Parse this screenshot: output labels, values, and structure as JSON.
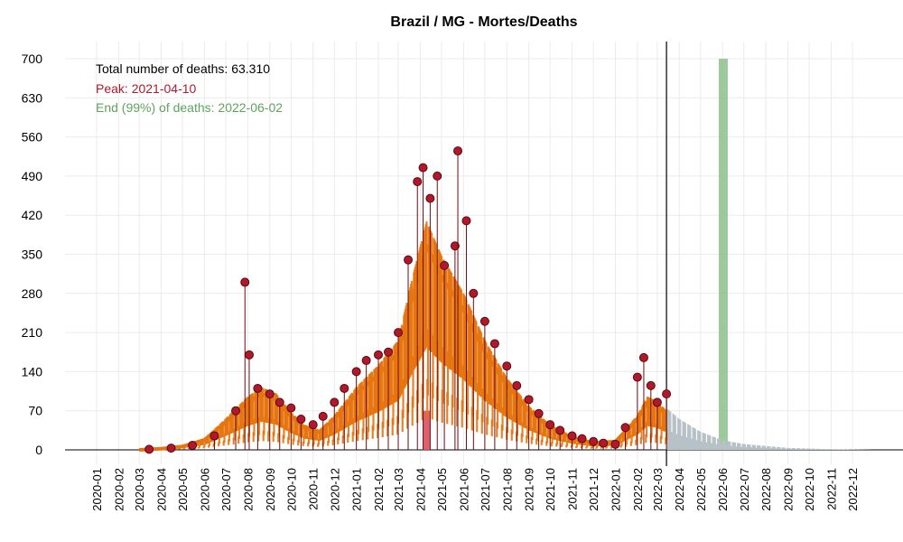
{
  "chart_data": {
    "type": "scatter",
    "title": "Brazil / MG - Mortes/Deaths",
    "xlabel": "",
    "ylabel": "",
    "ylim": [
      0,
      700
    ],
    "y_ticks": [
      0,
      70,
      140,
      210,
      280,
      350,
      420,
      490,
      560,
      630,
      700
    ],
    "x_ticks": [
      "2020-01",
      "2020-02",
      "2020-03",
      "2020-04",
      "2020-05",
      "2020-06",
      "2020-07",
      "2020-08",
      "2020-09",
      "2020-10",
      "2020-11",
      "2020-12",
      "2021-01",
      "2021-02",
      "2021-03",
      "2021-04",
      "2021-05",
      "2021-06",
      "2021-07",
      "2021-08",
      "2021-09",
      "2021-10",
      "2021-11",
      "2021-12",
      "2022-01",
      "2022-02",
      "2022-03",
      "2022-04",
      "2022-05",
      "2022-06",
      "2022-07",
      "2022-08",
      "2022-09",
      "2022-10",
      "2022-11",
      "2022-12"
    ],
    "grid": true,
    "annotations": {
      "total": "Total number of deaths: 63.310",
      "peak": "Peak: 2021-04-10",
      "end": "End (99%) of deaths: 2022-06-02"
    },
    "markers": {
      "current_date": "2022-03-14",
      "peak_date": "2021-04-10",
      "end_date": "2022-06-02"
    },
    "colors": {
      "points": "#b2182b",
      "smooth": "#e6750f",
      "peak": "#d9505c",
      "end": "#8dc08d",
      "forecast": "#b7c2c7",
      "annotation_total": "#000000",
      "annotation_peak": "#b2182b",
      "annotation_end": "#5fa35f"
    },
    "daily_deaths": [
      {
        "x": "2020-03-15",
        "y": 1
      },
      {
        "x": "2020-04-15",
        "y": 3
      },
      {
        "x": "2020-05-15",
        "y": 8
      },
      {
        "x": "2020-06-15",
        "y": 25
      },
      {
        "x": "2020-07-15",
        "y": 70
      },
      {
        "x": "2020-07-28",
        "y": 300
      },
      {
        "x": "2020-08-03",
        "y": 170
      },
      {
        "x": "2020-08-15",
        "y": 110
      },
      {
        "x": "2020-09-01",
        "y": 100
      },
      {
        "x": "2020-09-15",
        "y": 85
      },
      {
        "x": "2020-10-01",
        "y": 75
      },
      {
        "x": "2020-10-15",
        "y": 55
      },
      {
        "x": "2020-11-01",
        "y": 45
      },
      {
        "x": "2020-11-15",
        "y": 60
      },
      {
        "x": "2020-12-01",
        "y": 85
      },
      {
        "x": "2020-12-15",
        "y": 110
      },
      {
        "x": "2021-01-01",
        "y": 140
      },
      {
        "x": "2021-01-15",
        "y": 160
      },
      {
        "x": "2021-02-01",
        "y": 170
      },
      {
        "x": "2021-02-15",
        "y": 175
      },
      {
        "x": "2021-03-01",
        "y": 210
      },
      {
        "x": "2021-03-15",
        "y": 340
      },
      {
        "x": "2021-03-28",
        "y": 480
      },
      {
        "x": "2021-04-05",
        "y": 505
      },
      {
        "x": "2021-04-15",
        "y": 450
      },
      {
        "x": "2021-04-25",
        "y": 490
      },
      {
        "x": "2021-05-05",
        "y": 330
      },
      {
        "x": "2021-05-20",
        "y": 365
      },
      {
        "x": "2021-05-24",
        "y": 535
      },
      {
        "x": "2021-06-05",
        "y": 410
      },
      {
        "x": "2021-06-15",
        "y": 280
      },
      {
        "x": "2021-07-01",
        "y": 230
      },
      {
        "x": "2021-07-15",
        "y": 190
      },
      {
        "x": "2021-08-01",
        "y": 150
      },
      {
        "x": "2021-08-15",
        "y": 115
      },
      {
        "x": "2021-09-01",
        "y": 90
      },
      {
        "x": "2021-09-15",
        "y": 65
      },
      {
        "x": "2021-10-01",
        "y": 45
      },
      {
        "x": "2021-10-15",
        "y": 35
      },
      {
        "x": "2021-11-01",
        "y": 25
      },
      {
        "x": "2021-11-15",
        "y": 20
      },
      {
        "x": "2021-12-01",
        "y": 15
      },
      {
        "x": "2021-12-15",
        "y": 12
      },
      {
        "x": "2022-01-01",
        "y": 10
      },
      {
        "x": "2022-01-15",
        "y": 40
      },
      {
        "x": "2022-02-01",
        "y": 130
      },
      {
        "x": "2022-02-10",
        "y": 165
      },
      {
        "x": "2022-02-20",
        "y": 115
      },
      {
        "x": "2022-03-01",
        "y": 85
      },
      {
        "x": "2022-03-14",
        "y": 100
      }
    ],
    "smoothed_deaths": [
      {
        "x": "2020-03-01",
        "y": 0
      },
      {
        "x": "2020-04-01",
        "y": 2
      },
      {
        "x": "2020-05-01",
        "y": 6
      },
      {
        "x": "2020-06-01",
        "y": 18
      },
      {
        "x": "2020-07-01",
        "y": 50
      },
      {
        "x": "2020-08-01",
        "y": 85
      },
      {
        "x": "2020-08-20",
        "y": 100
      },
      {
        "x": "2020-09-10",
        "y": 90
      },
      {
        "x": "2020-10-01",
        "y": 60
      },
      {
        "x": "2020-10-20",
        "y": 40
      },
      {
        "x": "2020-11-10",
        "y": 32
      },
      {
        "x": "2020-12-01",
        "y": 55
      },
      {
        "x": "2021-01-01",
        "y": 100
      },
      {
        "x": "2021-02-01",
        "y": 135
      },
      {
        "x": "2021-03-01",
        "y": 175
      },
      {
        "x": "2021-03-20",
        "y": 270
      },
      {
        "x": "2021-04-10",
        "y": 365
      },
      {
        "x": "2021-05-01",
        "y": 310
      },
      {
        "x": "2021-06-01",
        "y": 250
      },
      {
        "x": "2021-07-01",
        "y": 175
      },
      {
        "x": "2021-08-01",
        "y": 115
      },
      {
        "x": "2021-09-01",
        "y": 70
      },
      {
        "x": "2021-10-01",
        "y": 40
      },
      {
        "x": "2021-11-01",
        "y": 22
      },
      {
        "x": "2021-12-01",
        "y": 12
      },
      {
        "x": "2022-01-01",
        "y": 15
      },
      {
        "x": "2022-02-01",
        "y": 55
      },
      {
        "x": "2022-02-15",
        "y": 85
      },
      {
        "x": "2022-03-01",
        "y": 78
      },
      {
        "x": "2022-03-14",
        "y": 62
      }
    ],
    "forecast": [
      {
        "x": "2022-03-14",
        "y": 65
      },
      {
        "x": "2022-04-01",
        "y": 48
      },
      {
        "x": "2022-05-01",
        "y": 28
      },
      {
        "x": "2022-06-01",
        "y": 15
      },
      {
        "x": "2022-07-01",
        "y": 9
      },
      {
        "x": "2022-08-01",
        "y": 6
      },
      {
        "x": "2022-09-01",
        "y": 3
      },
      {
        "x": "2022-10-01",
        "y": 2
      },
      {
        "x": "2022-11-01",
        "y": 1
      },
      {
        "x": "2022-12-01",
        "y": 0.5
      },
      {
        "x": "2022-12-31",
        "y": 0
      }
    ]
  }
}
